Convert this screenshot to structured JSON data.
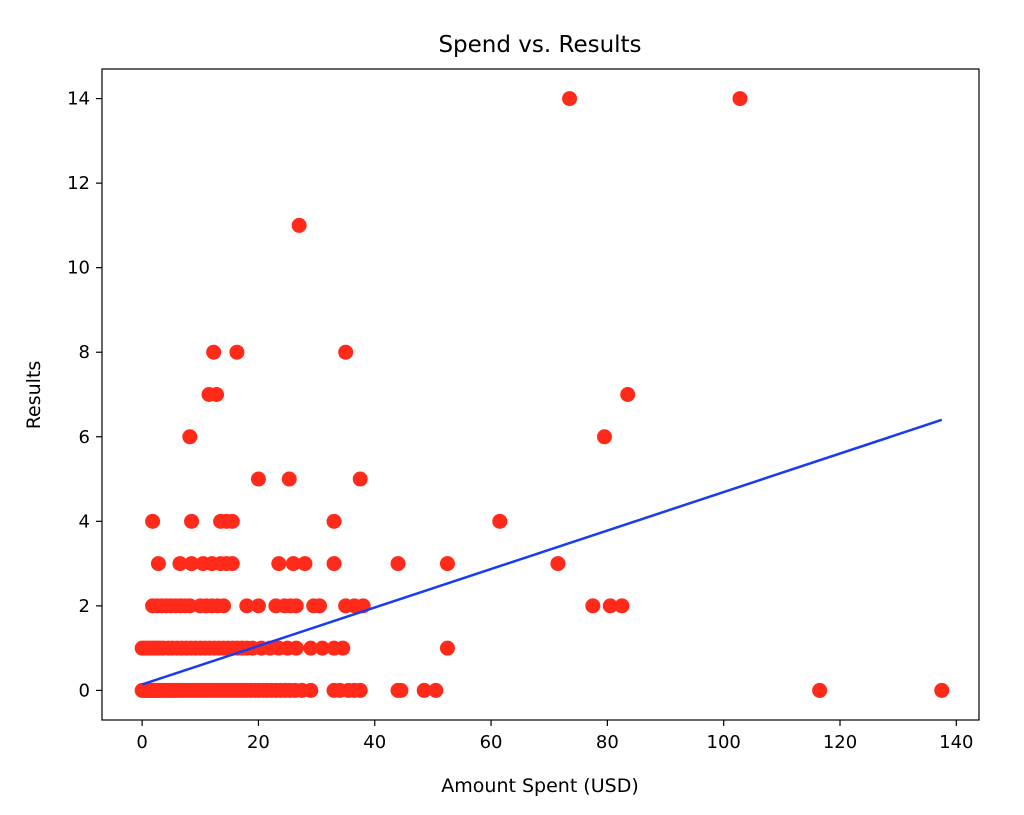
{
  "chart_data": {
    "type": "scatter",
    "title": "Spend vs. Results",
    "xlabel": "Amount Spent (USD)",
    "ylabel": "Results",
    "xlim": [
      -6.9,
      143.9
    ],
    "ylim": [
      -0.7,
      14.7
    ],
    "xticks": [
      0,
      20,
      40,
      60,
      80,
      100,
      120,
      140
    ],
    "yticks": [
      0,
      2,
      4,
      6,
      8,
      10,
      12,
      14
    ],
    "grid": false,
    "colors": {
      "points": "#ff2a1a",
      "fit_line": "#1a3cf0",
      "axes": "#000000"
    },
    "fit_line": {
      "x": [
        0,
        137.5
      ],
      "y": [
        0.14,
        6.4
      ]
    },
    "series": [
      {
        "points": [
          [
            0.0,
            0
          ],
          [
            0.3,
            0
          ],
          [
            0.6,
            0
          ],
          [
            0.9,
            0
          ],
          [
            1.2,
            0
          ],
          [
            1.5,
            0
          ],
          [
            1.8,
            0
          ],
          [
            2.1,
            0
          ],
          [
            2.4,
            0
          ],
          [
            2.7,
            0
          ],
          [
            3.0,
            0
          ],
          [
            3.4,
            0
          ],
          [
            3.8,
            0
          ],
          [
            4.2,
            0
          ],
          [
            4.6,
            0
          ],
          [
            5.0,
            0
          ],
          [
            5.4,
            0
          ],
          [
            5.8,
            0
          ],
          [
            6.2,
            0
          ],
          [
            6.6,
            0
          ],
          [
            7.0,
            0
          ],
          [
            7.5,
            0
          ],
          [
            8.0,
            0
          ],
          [
            8.5,
            0
          ],
          [
            9.0,
            0
          ],
          [
            9.5,
            0
          ],
          [
            10.0,
            0
          ],
          [
            10.5,
            0
          ],
          [
            11.0,
            0
          ],
          [
            11.5,
            0
          ],
          [
            12.0,
            0
          ],
          [
            12.6,
            0
          ],
          [
            13.2,
            0
          ],
          [
            13.8,
            0
          ],
          [
            14.4,
            0
          ],
          [
            15.0,
            0
          ],
          [
            15.6,
            0
          ],
          [
            16.2,
            0
          ],
          [
            16.8,
            0
          ],
          [
            17.4,
            0
          ],
          [
            18.0,
            0
          ],
          [
            18.7,
            0
          ],
          [
            19.4,
            0
          ],
          [
            20.1,
            0
          ],
          [
            20.8,
            0
          ],
          [
            21.5,
            0
          ],
          [
            22.2,
            0
          ],
          [
            23.0,
            0
          ],
          [
            23.8,
            0
          ],
          [
            24.6,
            0
          ],
          [
            25.4,
            0
          ],
          [
            26.3,
            0
          ],
          [
            27.5,
            0
          ],
          [
            29.0,
            0
          ],
          [
            33.0,
            0
          ],
          [
            34.0,
            0
          ],
          [
            35.5,
            0
          ],
          [
            36.5,
            0
          ],
          [
            37.5,
            0
          ],
          [
            44.0,
            0
          ],
          [
            44.5,
            0
          ],
          [
            48.5,
            0
          ],
          [
            50.5,
            0
          ],
          [
            116.5,
            0
          ],
          [
            137.5,
            0
          ],
          [
            0.0,
            1
          ],
          [
            0.5,
            1
          ],
          [
            1.0,
            1
          ],
          [
            1.5,
            1
          ],
          [
            2.0,
            1
          ],
          [
            2.5,
            1
          ],
          [
            3.0,
            1
          ],
          [
            3.6,
            1
          ],
          [
            4.5,
            1
          ],
          [
            5.2,
            1
          ],
          [
            6.0,
            1
          ],
          [
            6.8,
            1
          ],
          [
            7.6,
            1
          ],
          [
            8.4,
            1
          ],
          [
            9.2,
            1
          ],
          [
            10.0,
            1
          ],
          [
            10.8,
            1
          ],
          [
            11.6,
            1
          ],
          [
            12.4,
            1
          ],
          [
            13.2,
            1
          ],
          [
            14.0,
            1
          ],
          [
            14.8,
            1
          ],
          [
            15.6,
            1
          ],
          [
            16.4,
            1
          ],
          [
            17.2,
            1
          ],
          [
            18.0,
            1
          ],
          [
            19.0,
            1
          ],
          [
            20.5,
            1
          ],
          [
            22.0,
            1
          ],
          [
            23.5,
            1
          ],
          [
            25.0,
            1
          ],
          [
            26.5,
            1
          ],
          [
            29.0,
            1
          ],
          [
            31.0,
            1
          ],
          [
            33.0,
            1
          ],
          [
            34.5,
            1
          ],
          [
            52.5,
            1
          ],
          [
            1.8,
            2
          ],
          [
            2.6,
            2
          ],
          [
            3.4,
            2
          ],
          [
            4.2,
            2
          ],
          [
            5.0,
            2
          ],
          [
            5.8,
            2
          ],
          [
            6.6,
            2
          ],
          [
            7.4,
            2
          ],
          [
            8.2,
            2
          ],
          [
            10.0,
            2
          ],
          [
            11.0,
            2
          ],
          [
            12.0,
            2
          ],
          [
            13.0,
            2
          ],
          [
            14.0,
            2
          ],
          [
            18.0,
            2
          ],
          [
            20.0,
            2
          ],
          [
            23.0,
            2
          ],
          [
            24.5,
            2
          ],
          [
            25.5,
            2
          ],
          [
            26.5,
            2
          ],
          [
            29.5,
            2
          ],
          [
            30.5,
            2
          ],
          [
            35.0,
            2
          ],
          [
            36.5,
            2
          ],
          [
            38.0,
            2
          ],
          [
            77.5,
            2
          ],
          [
            80.5,
            2
          ],
          [
            82.5,
            2
          ],
          [
            2.8,
            3
          ],
          [
            6.5,
            3
          ],
          [
            8.5,
            3
          ],
          [
            10.5,
            3
          ],
          [
            12.0,
            3
          ],
          [
            13.5,
            3
          ],
          [
            14.5,
            3
          ],
          [
            15.5,
            3
          ],
          [
            23.5,
            3
          ],
          [
            26.0,
            3
          ],
          [
            28.0,
            3
          ],
          [
            33.0,
            3
          ],
          [
            44.0,
            3
          ],
          [
            52.5,
            3
          ],
          [
            71.5,
            3
          ],
          [
            1.8,
            4
          ],
          [
            8.5,
            4
          ],
          [
            13.5,
            4
          ],
          [
            14.5,
            4
          ],
          [
            15.5,
            4
          ],
          [
            33.0,
            4
          ],
          [
            61.5,
            4
          ],
          [
            20.0,
            5
          ],
          [
            25.3,
            5
          ],
          [
            37.5,
            5
          ],
          [
            8.2,
            6
          ],
          [
            79.5,
            6
          ],
          [
            11.5,
            7
          ],
          [
            12.8,
            7
          ],
          [
            83.5,
            7
          ],
          [
            12.3,
            8
          ],
          [
            16.3,
            8
          ],
          [
            35.0,
            8
          ],
          [
            27.0,
            11
          ],
          [
            73.5,
            14
          ],
          [
            102.8,
            14
          ]
        ]
      }
    ]
  }
}
